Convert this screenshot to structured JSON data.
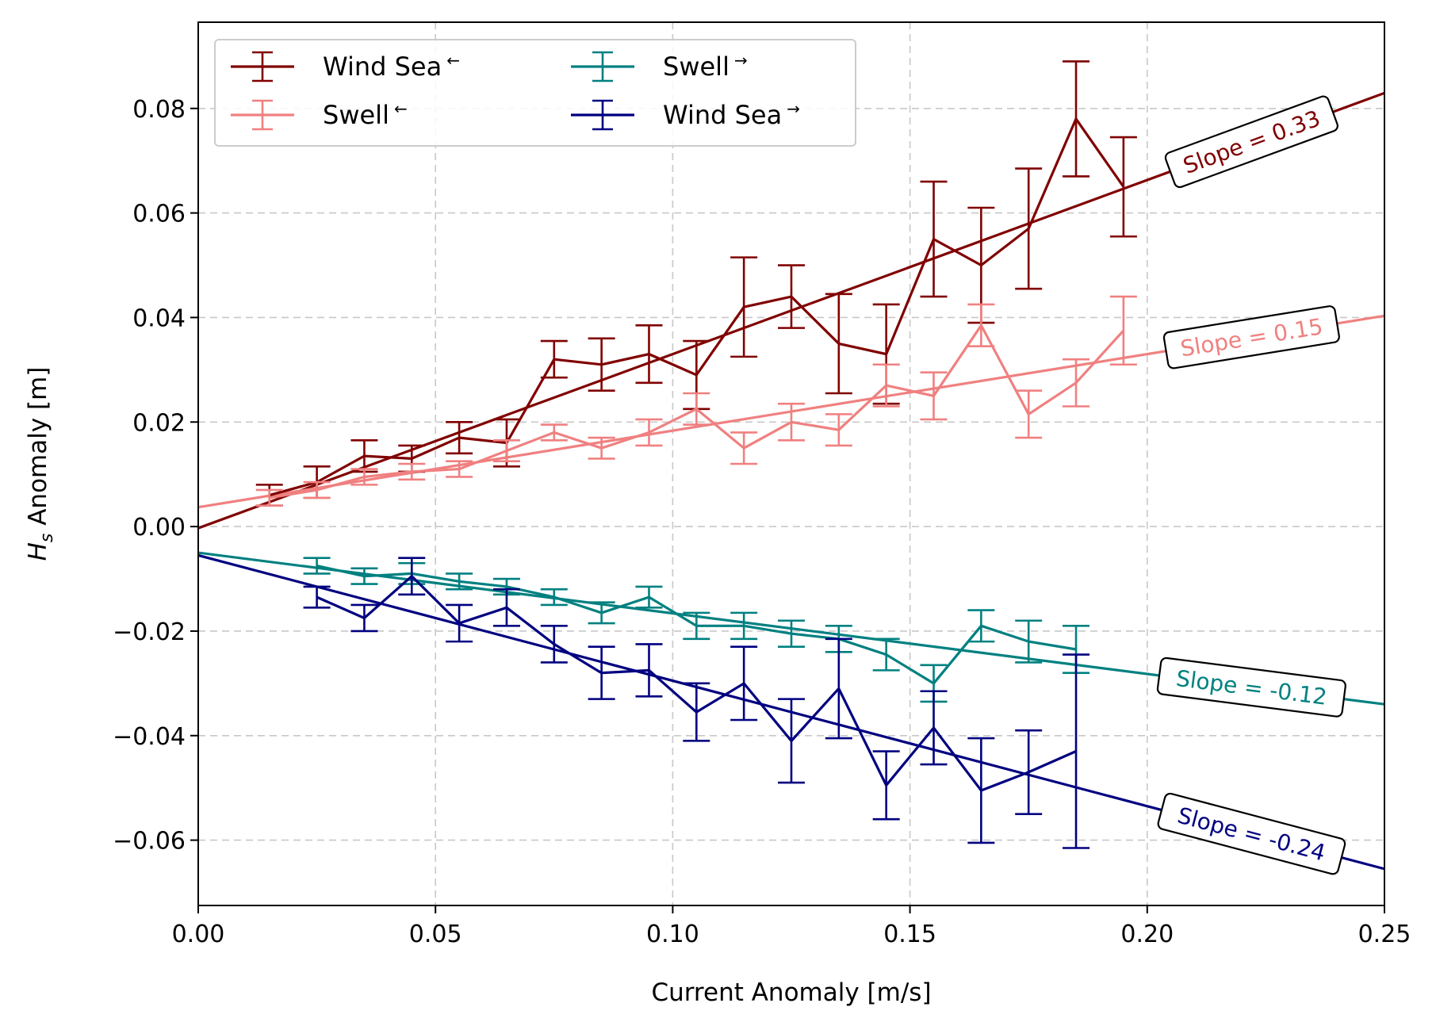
{
  "chart_data": {
    "type": "line",
    "xlabel": "Current Anomaly [m/s]",
    "ylabel": {
      "prefix": "H",
      "subscript": "s",
      "suffix": " Anomaly [m]"
    },
    "xlim": [
      0.0,
      0.25
    ],
    "ylim": [
      -0.0725,
      0.0965
    ],
    "xticks": [
      0.0,
      0.05,
      0.1,
      0.15,
      0.2,
      0.25
    ],
    "xtick_labels": [
      "0.00",
      "0.05",
      "0.10",
      "0.15",
      "0.20",
      "0.25"
    ],
    "yticks": [
      -0.06,
      -0.04,
      -0.02,
      0.0,
      0.02,
      0.04,
      0.06,
      0.08
    ],
    "ytick_labels": [
      "−0.06",
      "−0.04",
      "−0.02",
      "0.00",
      "0.02",
      "0.04",
      "0.06",
      "0.08"
    ],
    "grid": true,
    "legend_position": "top-left",
    "series": [
      {
        "name": "Wind Sea",
        "arrow": "←",
        "color": "#800000",
        "x": [
          0.015,
          0.025,
          0.035,
          0.045,
          0.055,
          0.065,
          0.075,
          0.085,
          0.095,
          0.105,
          0.115,
          0.125,
          0.135,
          0.145,
          0.155,
          0.165,
          0.175,
          0.185,
          0.195
        ],
        "y": [
          0.006,
          0.0085,
          0.0135,
          0.013,
          0.017,
          0.016,
          0.032,
          0.031,
          0.033,
          0.029,
          0.042,
          0.044,
          0.035,
          0.033,
          0.055,
          0.05,
          0.057,
          0.078,
          0.065
        ],
        "err": [
          0.002,
          0.003,
          0.003,
          0.0025,
          0.003,
          0.0045,
          0.0035,
          0.005,
          0.0055,
          0.0065,
          0.0095,
          0.006,
          0.0095,
          0.0095,
          0.011,
          0.011,
          0.0115,
          0.011,
          0.0095
        ],
        "fit": {
          "intercept": -0.0003,
          "slope": 0.333
        },
        "slope_label": "Slope = 0.33"
      },
      {
        "name": "Swell",
        "arrow": "←",
        "color": "#F08080",
        "x": [
          0.015,
          0.025,
          0.035,
          0.045,
          0.055,
          0.065,
          0.075,
          0.085,
          0.095,
          0.105,
          0.115,
          0.125,
          0.135,
          0.145,
          0.155,
          0.165,
          0.175,
          0.185,
          0.195
        ],
        "y": [
          0.0055,
          0.007,
          0.0095,
          0.0105,
          0.011,
          0.0145,
          0.018,
          0.015,
          0.018,
          0.0225,
          0.015,
          0.02,
          0.0185,
          0.027,
          0.025,
          0.0385,
          0.0215,
          0.0275,
          0.0375
        ],
        "err": [
          0.0015,
          0.0015,
          0.0015,
          0.0015,
          0.0015,
          0.002,
          0.0015,
          0.002,
          0.0025,
          0.003,
          0.003,
          0.0035,
          0.003,
          0.004,
          0.0045,
          0.004,
          0.0045,
          0.0045,
          0.0065
        ],
        "fit": {
          "intercept": 0.0037,
          "slope": 0.1465
        },
        "slope_label": "Slope = 0.15"
      },
      {
        "name": "Swell",
        "arrow": "→",
        "color": "#008080",
        "x": [
          0.025,
          0.035,
          0.045,
          0.055,
          0.065,
          0.075,
          0.085,
          0.095,
          0.105,
          0.115,
          0.125,
          0.135,
          0.145,
          0.155,
          0.165,
          0.175,
          0.185
        ],
        "y": [
          -0.0075,
          -0.0095,
          -0.009,
          -0.0105,
          -0.0115,
          -0.0135,
          -0.0165,
          -0.0135,
          -0.019,
          -0.019,
          -0.0205,
          -0.0215,
          -0.0245,
          -0.03,
          -0.019,
          -0.022,
          -0.0235
        ],
        "err": [
          0.0015,
          0.0015,
          0.002,
          0.0015,
          0.0015,
          0.0015,
          0.002,
          0.002,
          0.0025,
          0.0025,
          0.0025,
          0.0025,
          0.003,
          0.0035,
          0.003,
          0.004,
          0.0045
        ],
        "fit": {
          "intercept": -0.005,
          "slope": -0.116
        },
        "slope_label": "Slope = -0.12"
      },
      {
        "name": "Wind Sea",
        "arrow": "→",
        "color": "#000080",
        "x": [
          0.025,
          0.035,
          0.045,
          0.055,
          0.065,
          0.075,
          0.085,
          0.095,
          0.105,
          0.115,
          0.125,
          0.135,
          0.145,
          0.155,
          0.165,
          0.175,
          0.185
        ],
        "y": [
          -0.0135,
          -0.0175,
          -0.0095,
          -0.0185,
          -0.0155,
          -0.0225,
          -0.028,
          -0.0275,
          -0.0355,
          -0.03,
          -0.041,
          -0.031,
          -0.0495,
          -0.0385,
          -0.0505,
          -0.047,
          -0.043
        ],
        "err": [
          0.002,
          0.0025,
          0.0035,
          0.0035,
          0.0035,
          0.0035,
          0.005,
          0.005,
          0.0055,
          0.007,
          0.008,
          0.0095,
          0.0065,
          0.007,
          0.01,
          0.008,
          0.0185
        ],
        "fit": {
          "intercept": -0.0055,
          "slope": -0.24
        },
        "slope_label": "Slope = -0.24"
      }
    ]
  }
}
